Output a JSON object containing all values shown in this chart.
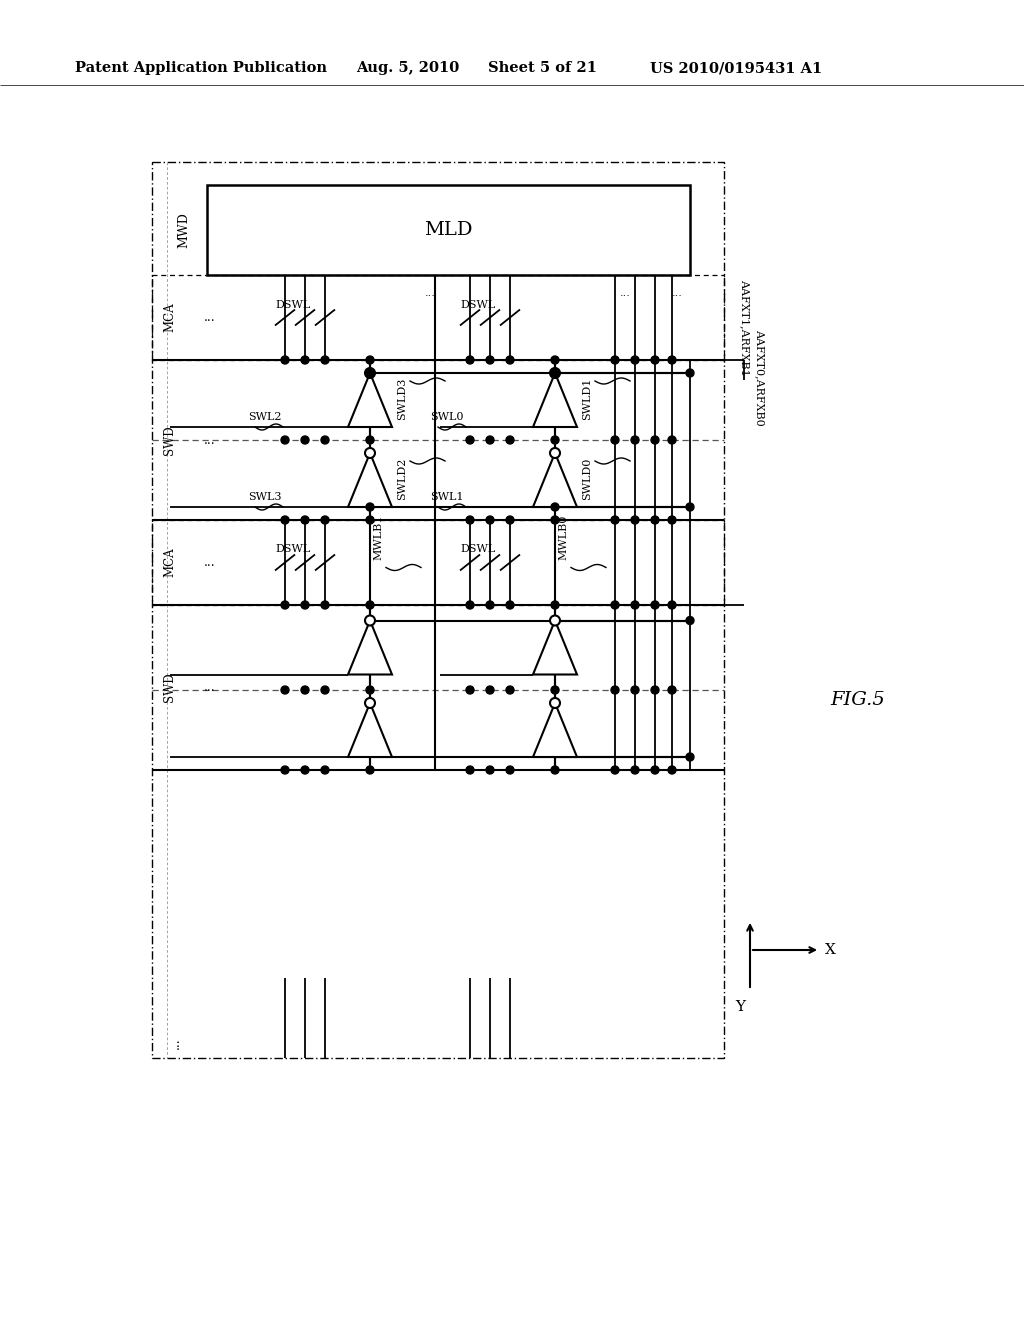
{
  "bg_color": "#ffffff",
  "line_color": "#000000",
  "header_text": "Patent Application Publication",
  "header_date": "Aug. 5, 2010",
  "header_sheet": "Sheet 5 of 21",
  "header_patent": "US 2010/0195431 A1",
  "fig_label": "FIG.5"
}
